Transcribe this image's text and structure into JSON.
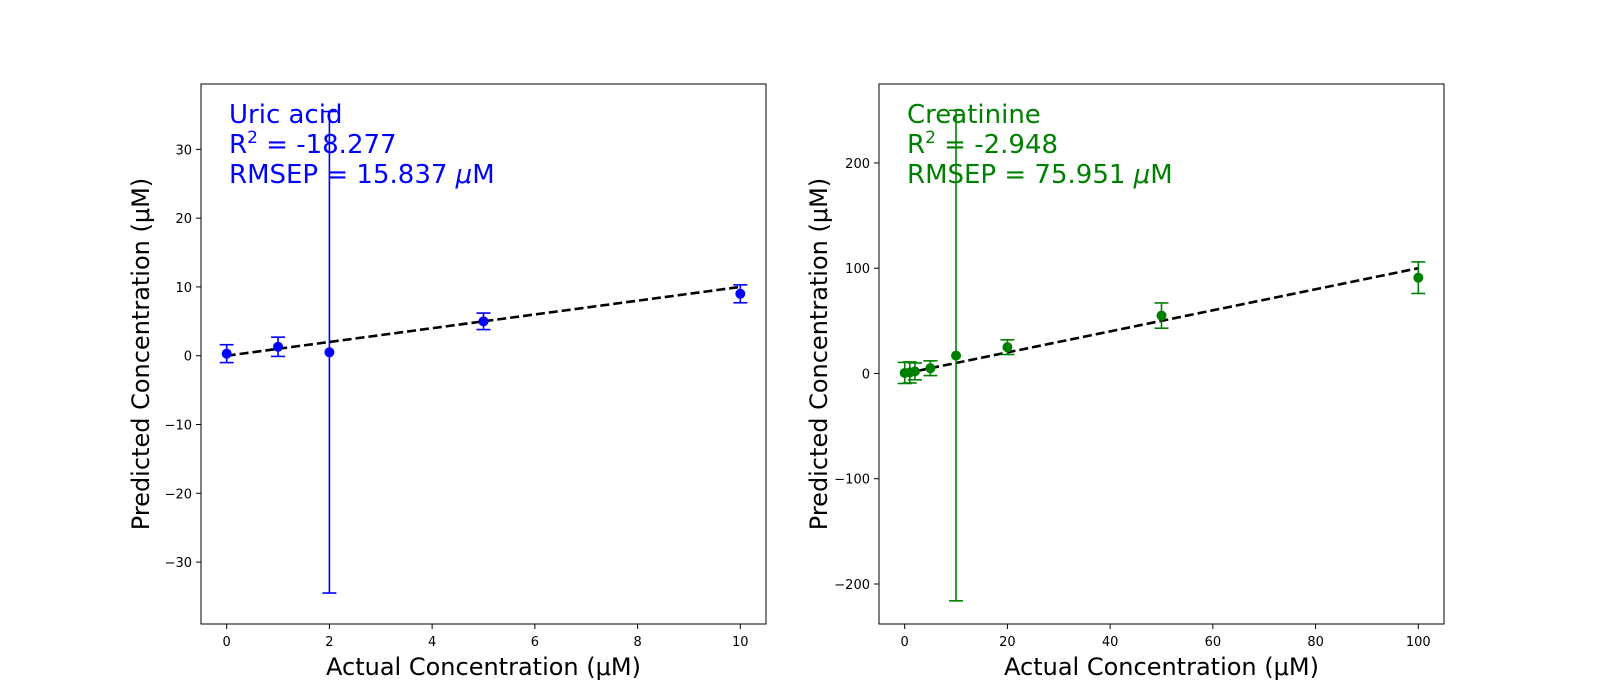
{
  "chart_data": [
    {
      "type": "scatter",
      "series": [
        {
          "name": "Uric acid",
          "color": "#0000ff",
          "x": [
            0,
            1,
            2,
            5,
            10
          ],
          "y": [
            0.3,
            1.3,
            0.5,
            5.0,
            9.0
          ],
          "yerr": [
            1.3,
            1.4,
            35.0,
            1.2,
            1.3
          ]
        }
      ],
      "reference_line": {
        "x": [
          0,
          10
        ],
        "y": [
          0,
          10
        ],
        "style": "dashed",
        "color": "#000000"
      },
      "annotation": {
        "title": "Uric acid",
        "r2": "-18.277",
        "rmsep": "15.837"
      },
      "xlabel": "Actual Concentration (μM)",
      "ylabel": "Predicted Concentration (μM)",
      "xlim": [
        -0.5,
        10.5
      ],
      "ylim": [
        -39,
        39.5
      ],
      "xticks": [
        0,
        2,
        4,
        6,
        8,
        10
      ],
      "yticks": [
        -30,
        -20,
        -10,
        0,
        10,
        20,
        30
      ],
      "grid": false
    },
    {
      "type": "scatter",
      "series": [
        {
          "name": "Creatinine",
          "color": "#008000",
          "x": [
            0,
            1,
            2,
            5,
            10,
            20,
            50,
            100
          ],
          "y": [
            0.5,
            1.0,
            2.0,
            5.0,
            17.0,
            25.0,
            55.0,
            91.0
          ],
          "yerr": [
            10.0,
            10.0,
            8.0,
            7.0,
            233.0,
            7.0,
            12.0,
            15.0
          ]
        }
      ],
      "reference_line": {
        "x": [
          0,
          100
        ],
        "y": [
          0,
          100
        ],
        "style": "dashed",
        "color": "#000000"
      },
      "annotation": {
        "title": "Creatinine",
        "r2": "-2.948",
        "rmsep": "75.951"
      },
      "xlabel": "Actual Concentration (μM)",
      "ylabel": "Predicted Concentration (μM)",
      "xlim": [
        -5,
        105
      ],
      "ylim": [
        -238,
        275
      ],
      "xticks": [
        0,
        20,
        40,
        60,
        80,
        100
      ],
      "yticks": [
        -200,
        -100,
        0,
        100,
        200
      ],
      "grid": false
    }
  ]
}
